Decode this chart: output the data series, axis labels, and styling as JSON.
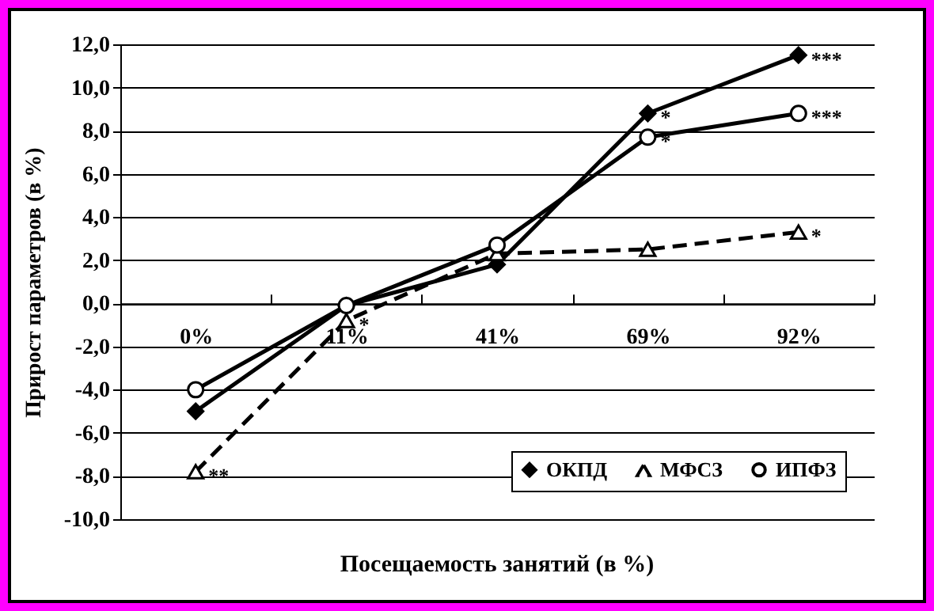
{
  "chart_data": {
    "type": "line",
    "xlabel": "Посещаемость занятий  (в %)",
    "ylabel": "Прирост  параметров  (в %)",
    "categories": [
      "0%",
      "11%",
      "41%",
      "69%",
      "92%"
    ],
    "series": [
      {
        "name": "ОКПД",
        "color": "#000000",
        "marker": "diamond",
        "line_style": "solid",
        "values": [
          -5.0,
          -0.1,
          1.8,
          8.8,
          11.5
        ]
      },
      {
        "name": "МФСЗ",
        "color": "#000000",
        "marker": "triangle",
        "line_style": "dashed",
        "values": [
          -7.8,
          -0.8,
          2.3,
          2.5,
          3.3
        ]
      },
      {
        "name": "ИПФЗ",
        "color": "#000000",
        "marker": "circle",
        "line_style": "solid",
        "values": [
          -4.0,
          -0.1,
          2.7,
          7.7,
          8.8
        ]
      }
    ],
    "ylim": [
      -10,
      12
    ],
    "yticks": [
      {
        "value": -10,
        "label": "-10,0"
      },
      {
        "value": -8,
        "label": "-8,0"
      },
      {
        "value": -6,
        "label": "-6,0"
      },
      {
        "value": -4,
        "label": "-4,0"
      },
      {
        "value": -2,
        "label": "-2,0"
      },
      {
        "value": 0,
        "label": "0,0"
      },
      {
        "value": 2,
        "label": "2,0"
      },
      {
        "value": 4,
        "label": "4,0"
      },
      {
        "value": 6,
        "label": "6,0"
      },
      {
        "value": 8,
        "label": "8,0"
      },
      {
        "value": 10,
        "label": "10,0"
      },
      {
        "value": 12,
        "label": "12,0"
      }
    ],
    "grid": "y",
    "legend": "bottom right",
    "annotations": [
      {
        "text": "**",
        "x": "0%",
        "y": -7.8
      },
      {
        "text": "*",
        "x": "11%",
        "y": -0.8
      },
      {
        "text": "*",
        "x": "69%",
        "y": 8.8
      },
      {
        "text": "*",
        "x": "69%",
        "y": 7.7
      },
      {
        "text": "***",
        "x": "92%",
        "y": 11.5
      },
      {
        "text": "***",
        "x": "92%",
        "y": 8.8
      },
      {
        "text": "*",
        "x": "92%",
        "y": 3.3
      }
    ]
  }
}
